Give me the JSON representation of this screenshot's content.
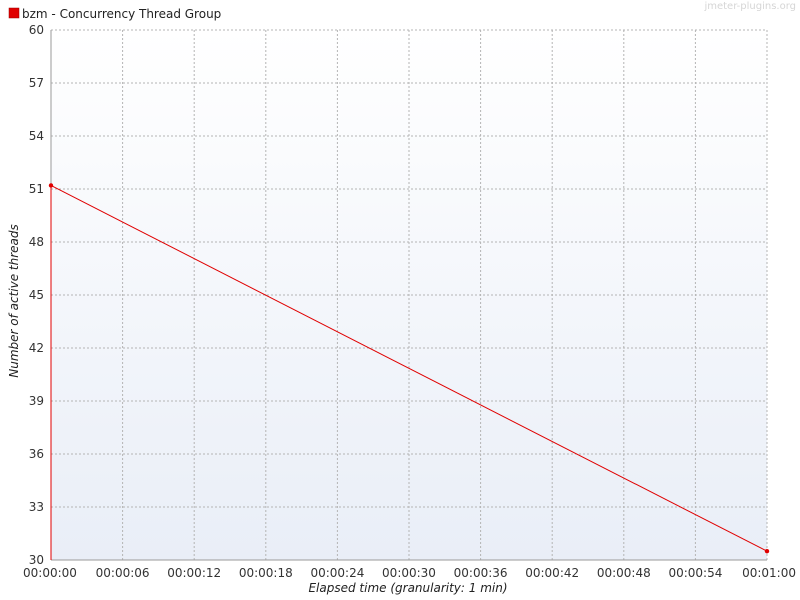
{
  "watermark": "jmeter-plugins.org",
  "chart_data": {
    "type": "line",
    "title": "",
    "xlabel": "Elapsed time (granularity: 1 min)",
    "ylabel": "Number of active threads",
    "xlim": [
      0,
      60
    ],
    "ylim": [
      30,
      60
    ],
    "grid": true,
    "legend_position": "top-left",
    "x_ticks": [
      0,
      6,
      12,
      18,
      24,
      30,
      36,
      42,
      48,
      54,
      60
    ],
    "x_tick_labels": [
      "00:00:00",
      "00:00:06",
      "00:00:12",
      "00:00:18",
      "00:00:24",
      "00:00:30",
      "00:00:36",
      "00:00:42",
      "00:00:48",
      "00:00:54",
      "00:01:00"
    ],
    "y_ticks": [
      30,
      33,
      36,
      39,
      42,
      45,
      48,
      51,
      54,
      57,
      60
    ],
    "y_tick_labels": [
      "30",
      "33",
      "36",
      "39",
      "42",
      "45",
      "48",
      "51",
      "54",
      "57",
      "60"
    ],
    "series": [
      {
        "name": "bzm - Concurrency Thread Group",
        "color": "#e00000",
        "x": [
          0,
          60
        ],
        "values": [
          51.2,
          30.5
        ]
      }
    ]
  }
}
